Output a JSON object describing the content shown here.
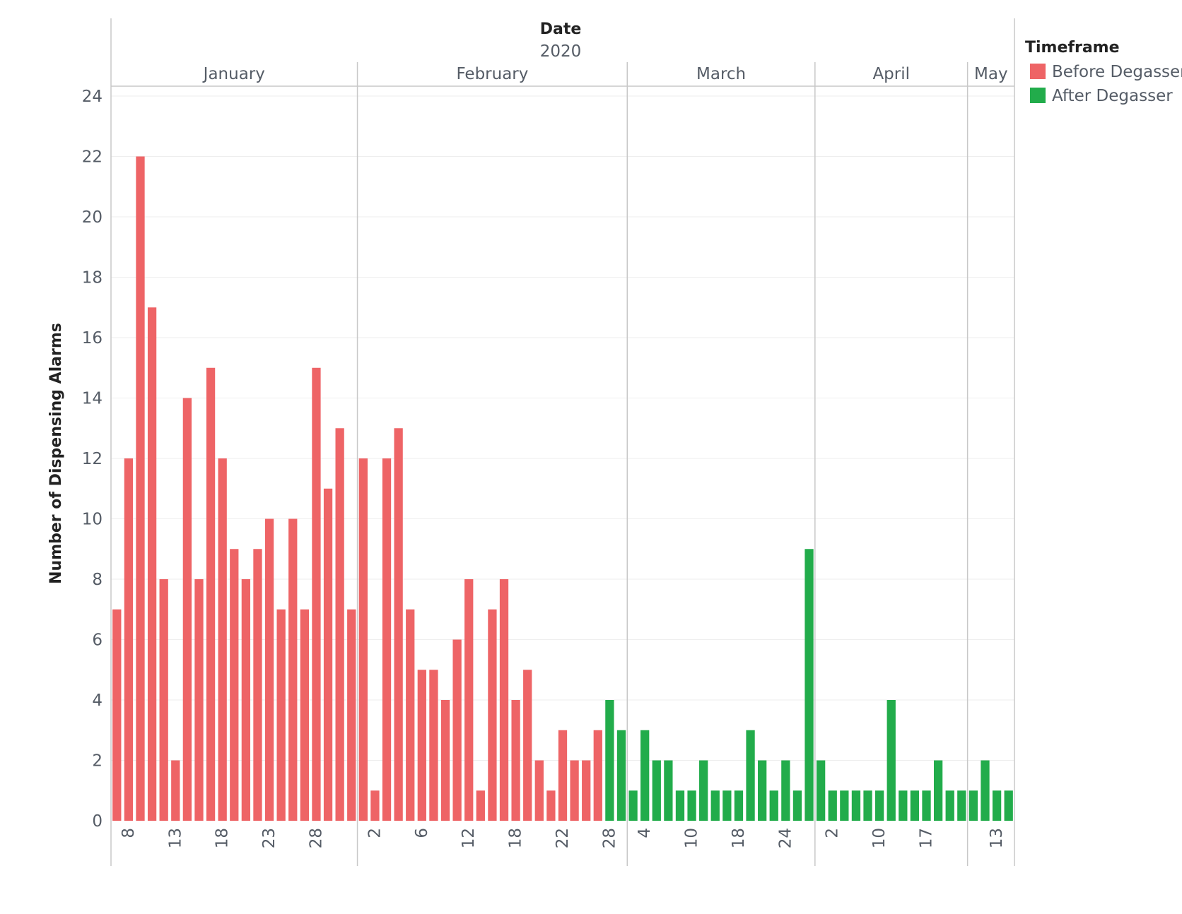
{
  "chart_data": {
    "type": "bar",
    "header_title": "Date",
    "header_year": "2020",
    "ylabel": "Number of Dispensing Alarms",
    "ylim": [
      0,
      24
    ],
    "yticks": [
      0,
      2,
      4,
      6,
      8,
      10,
      12,
      14,
      16,
      18,
      20,
      22,
      24
    ],
    "months": [
      "January",
      "February",
      "March",
      "April",
      "May"
    ],
    "legend_title": "Timeframe",
    "grid": true,
    "legend_position": "top-right",
    "series": [
      {
        "name": "Before Degasser",
        "color": "#ee6466"
      },
      {
        "name": "After Degasser",
        "color": "#22ac4b"
      }
    ],
    "values": [
      7,
      12,
      22,
      17,
      8,
      2,
      14,
      8,
      15,
      12,
      9,
      8,
      9,
      10,
      7,
      10,
      7,
      15,
      11,
      13,
      7,
      12,
      1,
      12,
      13,
      7,
      5,
      5,
      4,
      6,
      8,
      1,
      7,
      8,
      4,
      5,
      2,
      1,
      3,
      2,
      2,
      3,
      4,
      3,
      1,
      3,
      2,
      2,
      1,
      1,
      2,
      1,
      1,
      1,
      3,
      2,
      1,
      2,
      1,
      9,
      2,
      1,
      1,
      1,
      1,
      1,
      4,
      1,
      1,
      1,
      2,
      1,
      1,
      1,
      2,
      1,
      1
    ],
    "before_count": 42,
    "tick_labels": [
      {
        "bar": 1,
        "label": "8"
      },
      {
        "bar": 5,
        "label": "13"
      },
      {
        "bar": 9,
        "label": "18"
      },
      {
        "bar": 13,
        "label": "23"
      },
      {
        "bar": 17,
        "label": "28"
      },
      {
        "bar": 22,
        "label": "2"
      },
      {
        "bar": 26,
        "label": "6"
      },
      {
        "bar": 30,
        "label": "12"
      },
      {
        "bar": 34,
        "label": "18"
      },
      {
        "bar": 38,
        "label": "22"
      },
      {
        "bar": 42,
        "label": "28"
      },
      {
        "bar": 45,
        "label": "4"
      },
      {
        "bar": 49,
        "label": "10"
      },
      {
        "bar": 53,
        "label": "18"
      },
      {
        "bar": 57,
        "label": "24"
      },
      {
        "bar": 61,
        "label": "2"
      },
      {
        "bar": 65,
        "label": "10"
      },
      {
        "bar": 69,
        "label": "17"
      },
      {
        "bar": 75,
        "label": "13"
      }
    ],
    "month_start_bars": [
      0,
      21,
      44,
      60,
      73
    ]
  }
}
